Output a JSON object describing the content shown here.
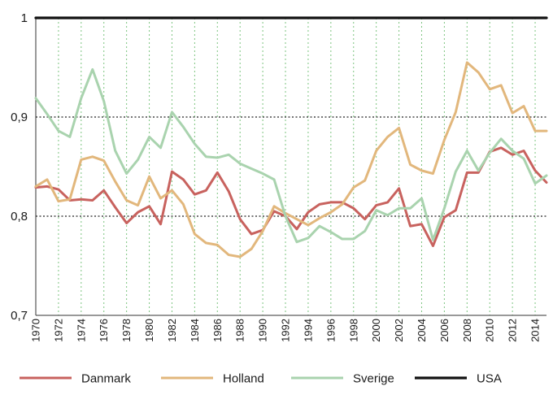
{
  "chart_data": {
    "type": "line",
    "title": "",
    "xlabel": "",
    "ylabel": "",
    "ylim": [
      0.7,
      1.0
    ],
    "xlim": [
      1970,
      2015
    ],
    "y_ticks": [
      1.0,
      0.9,
      0.8,
      0.7
    ],
    "y_tick_labels": [
      "1",
      "0,9",
      "0,8",
      "0,7"
    ],
    "x_ticks": [
      1970,
      1972,
      1974,
      1976,
      1978,
      1980,
      1982,
      1984,
      1986,
      1988,
      1990,
      1992,
      1994,
      1996,
      1998,
      2000,
      2002,
      2004,
      2006,
      2008,
      2010,
      2012,
      2014
    ],
    "x_tick_labels": [
      "1970",
      "1972",
      "1974",
      "1976",
      "1978",
      "1980",
      "1982",
      "1984",
      "1986",
      "1988",
      "1990",
      "1992",
      "1994",
      "1996",
      "1998",
      "2000",
      "2002",
      "2004",
      "2006",
      "2008",
      "2010",
      "2012",
      "2014"
    ],
    "vertical_grid": "dotted-green",
    "horizontal_grid": "dotted-black",
    "legend_position": "bottom",
    "x": [
      1970,
      1971,
      1972,
      1973,
      1974,
      1975,
      1976,
      1977,
      1978,
      1979,
      1980,
      1981,
      1982,
      1983,
      1984,
      1985,
      1986,
      1987,
      1988,
      1989,
      1990,
      1991,
      1992,
      1993,
      1994,
      1995,
      1996,
      1997,
      1998,
      1999,
      2000,
      2001,
      2002,
      2003,
      2004,
      2005,
      2006,
      2007,
      2008,
      2009,
      2010,
      2011,
      2012,
      2013,
      2014,
      2015
    ],
    "series": [
      {
        "name": "Danmark",
        "color": "#c8625e",
        "values": [
          0.829,
          0.83,
          0.827,
          0.816,
          0.817,
          0.816,
          0.826,
          0.809,
          0.793,
          0.804,
          0.81,
          0.792,
          0.845,
          0.837,
          0.822,
          0.826,
          0.844,
          0.825,
          0.797,
          0.782,
          0.786,
          0.805,
          0.8,
          0.787,
          0.804,
          0.812,
          0.814,
          0.814,
          0.808,
          0.797,
          0.811,
          0.814,
          0.828,
          0.79,
          0.792,
          0.77,
          0.799,
          0.806,
          0.844,
          0.844,
          0.865,
          0.869,
          0.862,
          0.866,
          0.846,
          0.834
        ]
      },
      {
        "name": "Holland",
        "color": "#e2b77c",
        "values": [
          0.83,
          0.837,
          0.815,
          0.817,
          0.857,
          0.86,
          0.856,
          0.835,
          0.816,
          0.811,
          0.84,
          0.818,
          0.826,
          0.812,
          0.782,
          0.773,
          0.771,
          0.761,
          0.759,
          0.767,
          0.785,
          0.81,
          0.803,
          0.797,
          0.791,
          0.798,
          0.804,
          0.812,
          0.829,
          0.836,
          0.866,
          0.88,
          0.889,
          0.852,
          0.846,
          0.843,
          0.877,
          0.905,
          0.955,
          0.945,
          0.928,
          0.932,
          0.904,
          0.911,
          0.886,
          0.886
        ]
      },
      {
        "name": "Sverige",
        "color": "#a9d3ae",
        "values": [
          0.919,
          0.903,
          0.886,
          0.88,
          0.919,
          0.948,
          0.916,
          0.866,
          0.843,
          0.857,
          0.88,
          0.869,
          0.905,
          0.89,
          0.873,
          0.86,
          0.859,
          0.862,
          0.853,
          0.848,
          0.843,
          0.837,
          0.8,
          0.774,
          0.778,
          0.79,
          0.784,
          0.777,
          0.777,
          0.785,
          0.806,
          0.801,
          0.808,
          0.808,
          0.818,
          0.776,
          0.808,
          0.845,
          0.866,
          0.846,
          0.864,
          0.878,
          0.866,
          0.858,
          0.833,
          0.841
        ]
      },
      {
        "name": "USA",
        "color": "#111111",
        "values": [
          1.0,
          1.0,
          1.0,
          1.0,
          1.0,
          1.0,
          1.0,
          1.0,
          1.0,
          1.0,
          1.0,
          1.0,
          1.0,
          1.0,
          1.0,
          1.0,
          1.0,
          1.0,
          1.0,
          1.0,
          1.0,
          1.0,
          1.0,
          1.0,
          1.0,
          1.0,
          1.0,
          1.0,
          1.0,
          1.0,
          1.0,
          1.0,
          1.0,
          1.0,
          1.0,
          1.0,
          1.0,
          1.0,
          1.0,
          1.0,
          1.0,
          1.0,
          1.0,
          1.0,
          1.0,
          1.0
        ]
      }
    ]
  }
}
